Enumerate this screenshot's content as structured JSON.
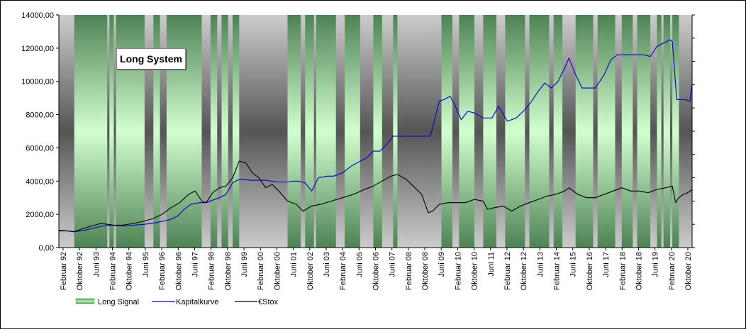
{
  "chart_data": {
    "type": "line",
    "title": "Long System",
    "ylim": [
      0,
      14000
    ],
    "y_ticks": [
      "0,00",
      "2000,00",
      "4000,00",
      "6000,00",
      "8000,00",
      "10000,00",
      "12000,00",
      "14000,00"
    ],
    "x_tick_labels": [
      "Februar 92",
      "Oktober 92",
      "Juni 93",
      "Februar 94",
      "Oktober 94",
      "Juni 95",
      "Februar 96",
      "Oktober 96",
      "Juni 97",
      "Februar 98",
      "Oktober 98",
      "Juni 99",
      "Februar 00",
      "Oktober 00",
      "Juni 01",
      "Oktober 02",
      "Juni 03",
      "Februar 04",
      "Juni 05",
      "Oktober 06",
      "Juni 07",
      "Februar 08",
      "Oktober 08",
      "Juni 09",
      "Februar 10",
      "Oktober 10",
      "Juni 11",
      "Februar 12",
      "Oktober 12",
      "Juni 13",
      "Februar 14",
      "Juni 15",
      "Oktober 16",
      "Juni 17",
      "Februar 18",
      "Oktober 18",
      "Juni 19",
      "Februar 20",
      "Oktober 20"
    ],
    "legend": [
      "Long Signal",
      "Kapitalkurve",
      "€Stox"
    ],
    "legend_position": "bottom",
    "colors": {
      "long_signal": "#3c9c3c",
      "kapitalkurve": "#0000cc",
      "stox": "#000000",
      "off_band": "#aaaaaa"
    },
    "x_range": [
      1992.1,
      2020.9
    ],
    "long_signal_periods": [
      [
        1992.8,
        1994.3
      ],
      [
        1994.4,
        1994.6
      ],
      [
        1994.7,
        1996.0
      ],
      [
        1996.4,
        1996.7
      ],
      [
        1997.0,
        1998.6
      ],
      [
        1999.0,
        1999.3
      ],
      [
        1999.5,
        1999.8
      ],
      [
        2000.0,
        2000.3
      ],
      [
        2002.5,
        2003.1
      ],
      [
        2003.3,
        2003.7
      ],
      [
        2003.8,
        2004.7
      ],
      [
        2005.1,
        2005.8
      ],
      [
        2006.4,
        2006.8
      ],
      [
        2007.3,
        2007.5
      ],
      [
        2009.5,
        2010.0
      ],
      [
        2010.3,
        2011.0
      ],
      [
        2011.4,
        2012.0
      ],
      [
        2012.4,
        2013.3
      ],
      [
        2013.5,
        2014.4
      ],
      [
        2014.6,
        2015.0
      ],
      [
        2015.6,
        2016.4
      ],
      [
        2016.6,
        2017.4
      ],
      [
        2017.7,
        2018.2
      ],
      [
        2018.4,
        2019.0
      ],
      [
        2019.3,
        2019.5
      ],
      [
        2019.6,
        2019.9
      ],
      [
        2020.0,
        2020.3
      ]
    ],
    "series": [
      {
        "name": "Kapitalkurve",
        "x": [
          1992.1,
          1992.5,
          1992.8,
          1993.3,
          1993.6,
          1994.1,
          1994.5,
          1995.0,
          1995.5,
          1996.0,
          1996.5,
          1996.9,
          1997.2,
          1997.5,
          1997.8,
          1998.1,
          1998.5,
          1998.8,
          1999.1,
          1999.4,
          1999.7,
          2000.0,
          2000.3,
          2000.5,
          2000.8,
          2001.1,
          2001.5,
          2002.0,
          2002.5,
          2002.8,
          2003.0,
          2003.3,
          2003.6,
          2003.9,
          2004.3,
          2004.6,
          2005.0,
          2005.4,
          2005.8,
          2006.1,
          2006.4,
          2006.7,
          2007.0,
          2007.3,
          2007.5,
          2008.0,
          2008.5,
          2009.0,
          2009.4,
          2009.6,
          2009.9,
          2010.1,
          2010.4,
          2010.7,
          2011.0,
          2011.4,
          2011.8,
          2012.1,
          2012.5,
          2012.9,
          2013.3,
          2013.6,
          2013.9,
          2014.2,
          2014.5,
          2014.8,
          2015.1,
          2015.3,
          2015.6,
          2015.9,
          2016.2,
          2016.5,
          2016.9,
          2017.2,
          2017.5,
          2017.8,
          2018.1,
          2018.4,
          2018.7,
          2019.0,
          2019.3,
          2019.6,
          2019.9,
          2020.0,
          2020.2,
          2020.4,
          2020.6,
          2020.8,
          2020.9
        ],
        "y": [
          1000,
          1000,
          950,
          1050,
          1150,
          1300,
          1350,
          1300,
          1350,
          1400,
          1500,
          1600,
          1700,
          1900,
          2300,
          2600,
          2700,
          2700,
          2850,
          3000,
          3200,
          3900,
          4100,
          4100,
          4050,
          4050,
          4050,
          3950,
          3950,
          4000,
          4000,
          3900,
          3400,
          4200,
          4300,
          4300,
          4500,
          4900,
          5200,
          5400,
          5800,
          5800,
          6200,
          6700,
          6700,
          6700,
          6700,
          6700,
          8800,
          8900,
          9100,
          8600,
          7700,
          8200,
          8100,
          7800,
          7800,
          8500,
          7600,
          7800,
          8300,
          8800,
          9400,
          9900,
          9600,
          10000,
          10800,
          11400,
          10400,
          9600,
          9600,
          9600,
          10400,
          11300,
          11600,
          11600,
          11600,
          11600,
          11600,
          11500,
          12100,
          12300,
          12500,
          12400,
          8900,
          8900,
          8900,
          8800,
          9900
        ]
      },
      {
        "name": "€Stox",
        "x": [
          1992.1,
          1992.5,
          1992.8,
          1993.2,
          1993.6,
          1994.0,
          1994.3,
          1994.6,
          1995.0,
          1995.5,
          1996.0,
          1996.4,
          1996.8,
          1997.2,
          1997.6,
          1998.0,
          1998.3,
          1998.6,
          1998.8,
          1999.1,
          1999.4,
          1999.7,
          2000.0,
          2000.3,
          2000.6,
          2000.9,
          2001.2,
          2001.5,
          2001.8,
          2002.1,
          2002.5,
          2002.9,
          2003.2,
          2003.6,
          2004.0,
          2004.5,
          2005.0,
          2005.5,
          2006.0,
          2006.4,
          2006.8,
          2007.2,
          2007.5,
          2007.9,
          2008.3,
          2008.6,
          2008.9,
          2009.1,
          2009.4,
          2009.8,
          2010.2,
          2010.6,
          2011.0,
          2011.4,
          2011.6,
          2011.9,
          2012.3,
          2012.7,
          2013.1,
          2013.5,
          2013.9,
          2014.3,
          2014.7,
          2015.1,
          2015.3,
          2015.7,
          2016.1,
          2016.5,
          2016.9,
          2017.3,
          2017.7,
          2018.1,
          2018.5,
          2018.9,
          2019.3,
          2019.7,
          2020.0,
          2020.15,
          2020.3,
          2020.5,
          2020.7,
          2020.9
        ],
        "y": [
          1050,
          1000,
          950,
          1150,
          1300,
          1450,
          1400,
          1350,
          1350,
          1450,
          1600,
          1750,
          2000,
          2400,
          2700,
          3200,
          3400,
          2800,
          2700,
          3300,
          3600,
          3700,
          4200,
          5200,
          5100,
          4500,
          4200,
          3600,
          3800,
          3400,
          2800,
          2600,
          2200,
          2500,
          2600,
          2800,
          3000,
          3200,
          3500,
          3700,
          4000,
          4300,
          4400,
          4100,
          3600,
          3200,
          2100,
          2200,
          2600,
          2700,
          2700,
          2700,
          2900,
          2800,
          2300,
          2400,
          2500,
          2200,
          2500,
          2700,
          2900,
          3100,
          3200,
          3400,
          3600,
          3200,
          3000,
          3000,
          3200,
          3400,
          3600,
          3400,
          3400,
          3300,
          3500,
          3600,
          3700,
          2700,
          3000,
          3200,
          3300,
          3500
        ]
      }
    ]
  }
}
